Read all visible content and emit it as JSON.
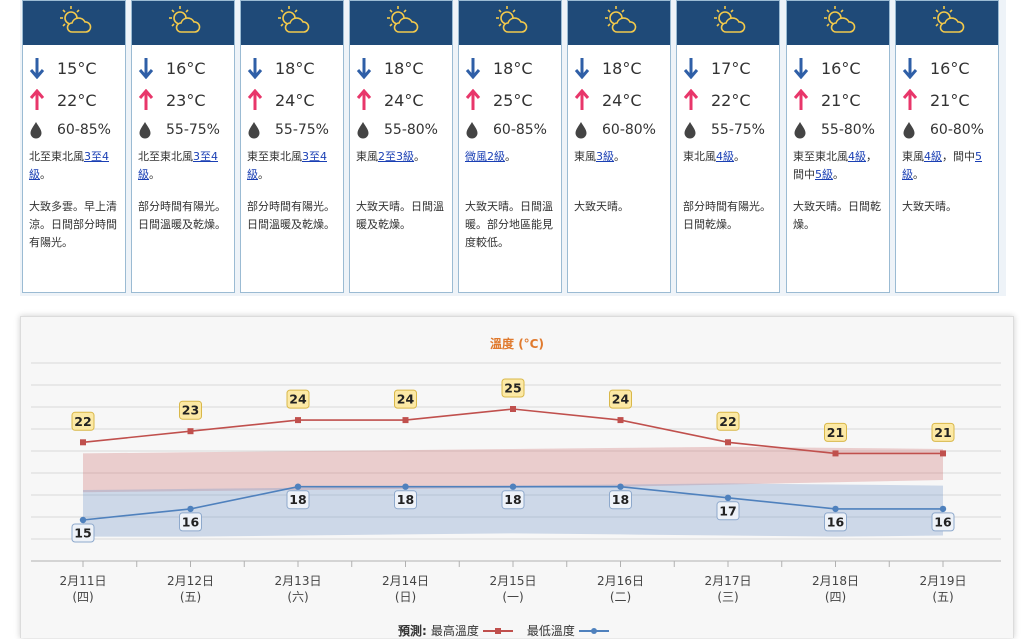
{
  "forecast": [
    {
      "min": "15°C",
      "max": "22°C",
      "humidity": "60-85%",
      "wind": [
        {
          "t": "北至東北風"
        },
        {
          "t": "3至4級",
          "link": true
        },
        {
          "t": "。"
        }
      ],
      "desc": "大致多雲。早上清涼。日間部分時間有陽光。"
    },
    {
      "min": "16°C",
      "max": "23°C",
      "humidity": "55-75%",
      "wind": [
        {
          "t": "北至東北風"
        },
        {
          "t": "3至4級",
          "link": true
        },
        {
          "t": "。"
        }
      ],
      "desc": "部分時間有陽光。日間溫暖及乾燥。"
    },
    {
      "min": "18°C",
      "max": "24°C",
      "humidity": "55-75%",
      "wind": [
        {
          "t": "東至東北風"
        },
        {
          "t": "3至4級",
          "link": true
        },
        {
          "t": "。"
        }
      ],
      "desc": "部分時間有陽光。日間溫暖及乾燥。"
    },
    {
      "min": "18°C",
      "max": "24°C",
      "humidity": "55-80%",
      "wind": [
        {
          "t": "東風"
        },
        {
          "t": "2至3級",
          "link": true
        },
        {
          "t": "。"
        }
      ],
      "desc": "大致天晴。日間溫暖及乾燥。"
    },
    {
      "min": "18°C",
      "max": "25°C",
      "humidity": "60-85%",
      "wind": [
        {
          "t": "微風2級",
          "link": true
        },
        {
          "t": "。"
        }
      ],
      "desc": "大致天晴。日間溫暖。部分地區能見度較低。"
    },
    {
      "min": "18°C",
      "max": "24°C",
      "humidity": "60-80%",
      "wind": [
        {
          "t": "東風"
        },
        {
          "t": "3級",
          "link": true
        },
        {
          "t": "。"
        }
      ],
      "desc": "大致天晴。"
    },
    {
      "min": "17°C",
      "max": "22°C",
      "humidity": "55-75%",
      "wind": [
        {
          "t": "東北風"
        },
        {
          "t": "4級",
          "link": true
        },
        {
          "t": "。"
        }
      ],
      "desc": "部分時間有陽光。日間乾燥。"
    },
    {
      "min": "16°C",
      "max": "21°C",
      "humidity": "55-80%",
      "wind": [
        {
          "t": "東至東北風"
        },
        {
          "t": "4級",
          "link": true
        },
        {
          "t": "，間中"
        },
        {
          "t": "5級",
          "link": true
        },
        {
          "t": "。"
        }
      ],
      "desc": "大致天晴。日間乾燥。"
    },
    {
      "min": "16°C",
      "max": "21°C",
      "humidity": "60-80%",
      "wind": [
        {
          "t": "東風"
        },
        {
          "t": "4級",
          "link": true
        },
        {
          "t": "，間中"
        },
        {
          "t": "5級",
          "link": true
        },
        {
          "t": "。"
        }
      ],
      "desc": "大致天晴。"
    }
  ],
  "legend": {
    "prefix": "預測:",
    "max_label": "最高溫度",
    "min_label": "最低溫度"
  },
  "colors": {
    "header": "#1f4a78",
    "max": "#c0504d",
    "min": "#4f81bd",
    "label_bg": "#fce9a5",
    "arrow_down": "#2f5fa7",
    "arrow_up": "#e8366a"
  },
  "icons": {
    "weather": "sun-behind-cloud-icon",
    "down": "arrow-down-icon",
    "up": "arrow-up-icon",
    "humidity": "water-drop-icon"
  },
  "chart_data": {
    "type": "line",
    "title": "溫度 (°C)",
    "categories": [
      "2月11日",
      "2月12日",
      "2月13日",
      "2月14日",
      "2月15日",
      "2月16日",
      "2月17日",
      "2月18日",
      "2月19日"
    ],
    "weekdays": [
      "(四)",
      "(五)",
      "(六)",
      "(日)",
      "(一)",
      "(二)",
      "(三)",
      "(四)",
      "(五)"
    ],
    "series": [
      {
        "name": "最高溫度",
        "values": [
          22,
          23,
          24,
          24,
          25,
          24,
          22,
          21,
          21
        ]
      },
      {
        "name": "最低溫度",
        "values": [
          15,
          16,
          18,
          18,
          18,
          18,
          17,
          16,
          16
        ]
      }
    ],
    "max_range_band": {
      "low": [
        17.5,
        17.6,
        17.7,
        17.8,
        17.9,
        18.0,
        18.2,
        18.4,
        18.6
      ],
      "high": [
        21.0,
        21.1,
        21.2,
        21.3,
        21.4,
        21.5,
        21.6,
        21.5,
        21.4
      ]
    },
    "min_range_band": {
      "low": [
        13.5,
        13.5,
        13.6,
        13.7,
        13.8,
        13.7,
        13.6,
        13.5,
        13.6
      ],
      "high": [
        17.7,
        17.8,
        17.9,
        18.0,
        18.1,
        18.2,
        18.3,
        18.2,
        18.1
      ]
    },
    "ylim": [
      12,
      29
    ],
    "grid": true,
    "data_labels": true,
    "legend_position": "bottom-center"
  }
}
